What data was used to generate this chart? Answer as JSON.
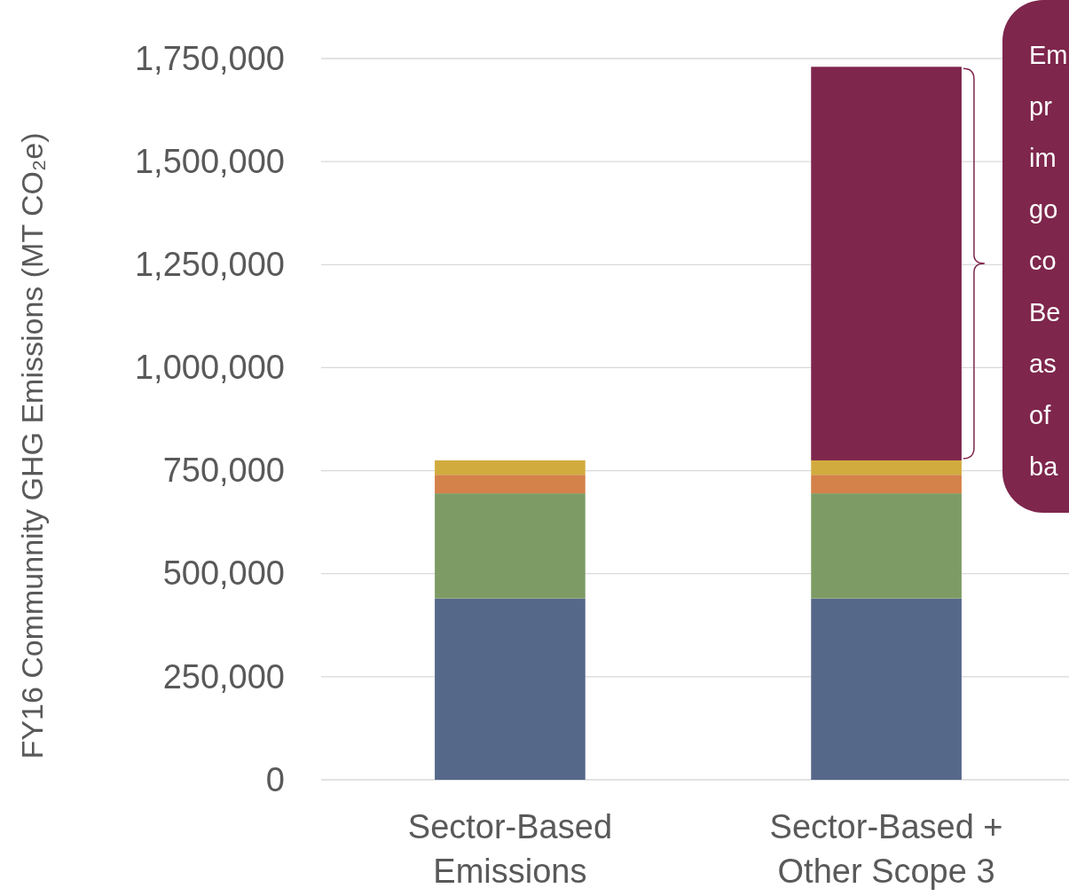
{
  "chart_data": {
    "type": "bar",
    "stacked": true,
    "ylabel": "FY16 Communnity GHG Emissions (MT CO₂e)",
    "categories": [
      "Sector-Based Emissions",
      "Sector-Based + Other Scope 3"
    ],
    "series": [
      {
        "color": "#56688a",
        "values": [
          440000,
          440000
        ]
      },
      {
        "color": "#7d9c65",
        "values": [
          255000,
          255000
        ]
      },
      {
        "color": "#d4814a",
        "values": [
          45000,
          45000
        ]
      },
      {
        "color": "#d2ab3e",
        "values": [
          35000,
          35000
        ]
      },
      {
        "color": "#7e264c",
        "values": [
          null,
          955000
        ]
      }
    ],
    "ylim": [
      0,
      1750000
    ],
    "yticks": [
      {
        "value": 0,
        "label": "0"
      },
      {
        "value": 250000,
        "label": "250,000"
      },
      {
        "value": 500000,
        "label": "500,000"
      },
      {
        "value": 750000,
        "label": "750,000"
      },
      {
        "value": 1000000,
        "label": "1,000,000"
      },
      {
        "value": 1250000,
        "label": "1,250,000"
      },
      {
        "value": 1500000,
        "label": "1,500,000"
      },
      {
        "value": 1750000,
        "label": "1,750,000"
      }
    ],
    "grid": "y",
    "annotations": [
      "Em\npr\nim\ngo\nco\nBe\nas\nof\nba"
    ]
  }
}
